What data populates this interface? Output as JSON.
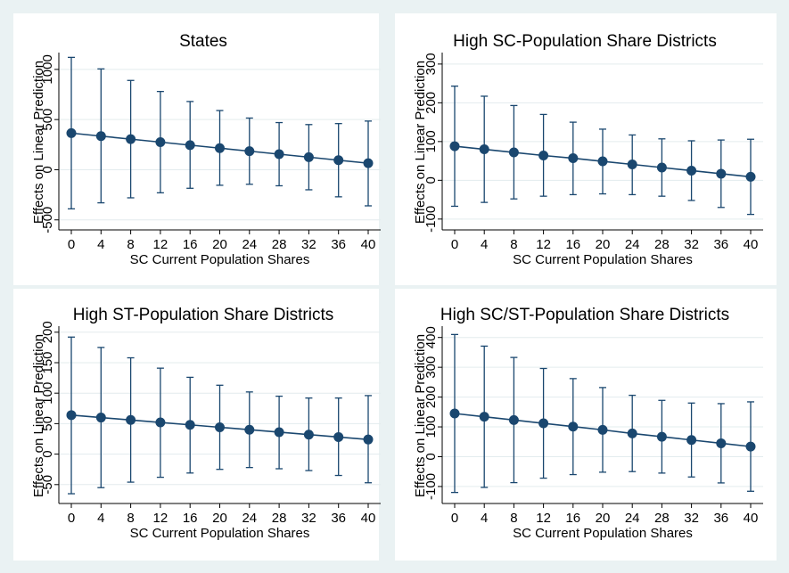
{
  "colors": {
    "background": "#eaf2f3",
    "panel": "#ffffff",
    "gridline": "#e3ecee",
    "series": "#1a476f",
    "axis": "#000000"
  },
  "chart_data": [
    {
      "type": "line",
      "title": "States",
      "xlabel": "SC Current Population Shares",
      "ylabel": "Effects on Linear Prediction",
      "x": [
        0,
        4,
        8,
        12,
        16,
        20,
        24,
        28,
        32,
        36,
        40
      ],
      "x_ticks": [
        "0",
        "4",
        "8",
        "12",
        "16",
        "20",
        "24",
        "28",
        "32",
        "36",
        "40"
      ],
      "y_ticks": [
        "-500",
        "0",
        "500",
        "1000"
      ],
      "y_tick_values": [
        -500,
        0,
        500,
        1000
      ],
      "ylim": [
        -600,
        1150
      ],
      "grid": true,
      "series": [
        {
          "values": [
            365,
            335,
            305,
            275,
            245,
            215,
            185,
            155,
            125,
            95,
            65
          ],
          "ci_low": [
            -390,
            -330,
            -280,
            -230,
            -185,
            -155,
            -145,
            -160,
            -200,
            -270,
            -360
          ],
          "ci_high": [
            1120,
            1005,
            890,
            780,
            680,
            590,
            515,
            470,
            450,
            460,
            485
          ]
        }
      ]
    },
    {
      "type": "line",
      "title": "High SC-Population Share Districts",
      "xlabel": "SC Current Population Shares",
      "ylabel": "Effects on Linear Prediction",
      "x": [
        0,
        4,
        8,
        12,
        16,
        20,
        24,
        28,
        32,
        36,
        40
      ],
      "x_ticks": [
        "0",
        "4",
        "8",
        "12",
        "16",
        "20",
        "24",
        "28",
        "32",
        "36",
        "40"
      ],
      "y_ticks": [
        "-100",
        "0",
        "100",
        "200",
        "300"
      ],
      "y_tick_values": [
        -100,
        0,
        100,
        200,
        300
      ],
      "ylim": [
        -128,
        325
      ],
      "grid": true,
      "series": [
        {
          "values": [
            88,
            80,
            72,
            64,
            57,
            49,
            41,
            33,
            25,
            17,
            9
          ],
          "ci_low": [
            -67,
            -57,
            -48,
            -41,
            -37,
            -35,
            -37,
            -41,
            -52,
            -70,
            -88
          ],
          "ci_high": [
            243,
            217,
            193,
            170,
            150,
            132,
            117,
            107,
            102,
            104,
            106
          ]
        }
      ]
    },
    {
      "type": "line",
      "title": "High ST-Population Share Districts",
      "xlabel": "SC Current Population Shares",
      "ylabel": "Effects on Linear Prediction",
      "x": [
        0,
        4,
        8,
        12,
        16,
        20,
        24,
        28,
        32,
        36,
        40
      ],
      "x_ticks": [
        "0",
        "4",
        "8",
        "12",
        "16",
        "20",
        "24",
        "28",
        "32",
        "36",
        "40"
      ],
      "y_ticks": [
        "-50",
        "0",
        "50",
        "100",
        "150",
        "200"
      ],
      "y_tick_values": [
        -50,
        0,
        50,
        100,
        150,
        200
      ],
      "ylim": [
        -81,
        207
      ],
      "grid": true,
      "series": [
        {
          "values": [
            64,
            60,
            56,
            52,
            48,
            44,
            40,
            36,
            32,
            28,
            24
          ],
          "ci_low": [
            -65,
            -55,
            -46,
            -38,
            -31,
            -25,
            -22,
            -24,
            -27,
            -35,
            -47
          ],
          "ci_high": [
            192,
            175,
            158,
            141,
            126,
            113,
            102,
            95,
            92,
            92,
            96
          ]
        }
      ]
    },
    {
      "type": "line",
      "title": "High SC/ST-Population Share Districts",
      "xlabel": "SC Current Population Shares",
      "ylabel": "Effects on Linear Prediction",
      "x": [
        0,
        4,
        8,
        12,
        16,
        20,
        24,
        28,
        32,
        36,
        40
      ],
      "x_ticks": [
        "0",
        "4",
        "8",
        "12",
        "16",
        "20",
        "24",
        "28",
        "32",
        "36",
        "40"
      ],
      "y_ticks": [
        "-100",
        "0",
        "100",
        "200",
        "300",
        "400"
      ],
      "y_tick_values": [
        -100,
        0,
        100,
        200,
        300,
        400
      ],
      "ylim": [
        -157,
        432
      ],
      "grid": true,
      "series": [
        {
          "values": [
            145,
            134,
            123,
            112,
            101,
            90,
            78,
            67,
            56,
            45,
            34
          ],
          "ci_low": [
            -120,
            -103,
            -87,
            -72,
            -60,
            -52,
            -50,
            -55,
            -68,
            -88,
            -116
          ],
          "ci_high": [
            410,
            371,
            333,
            296,
            262,
            232,
            206,
            189,
            180,
            178,
            184
          ]
        }
      ]
    }
  ]
}
